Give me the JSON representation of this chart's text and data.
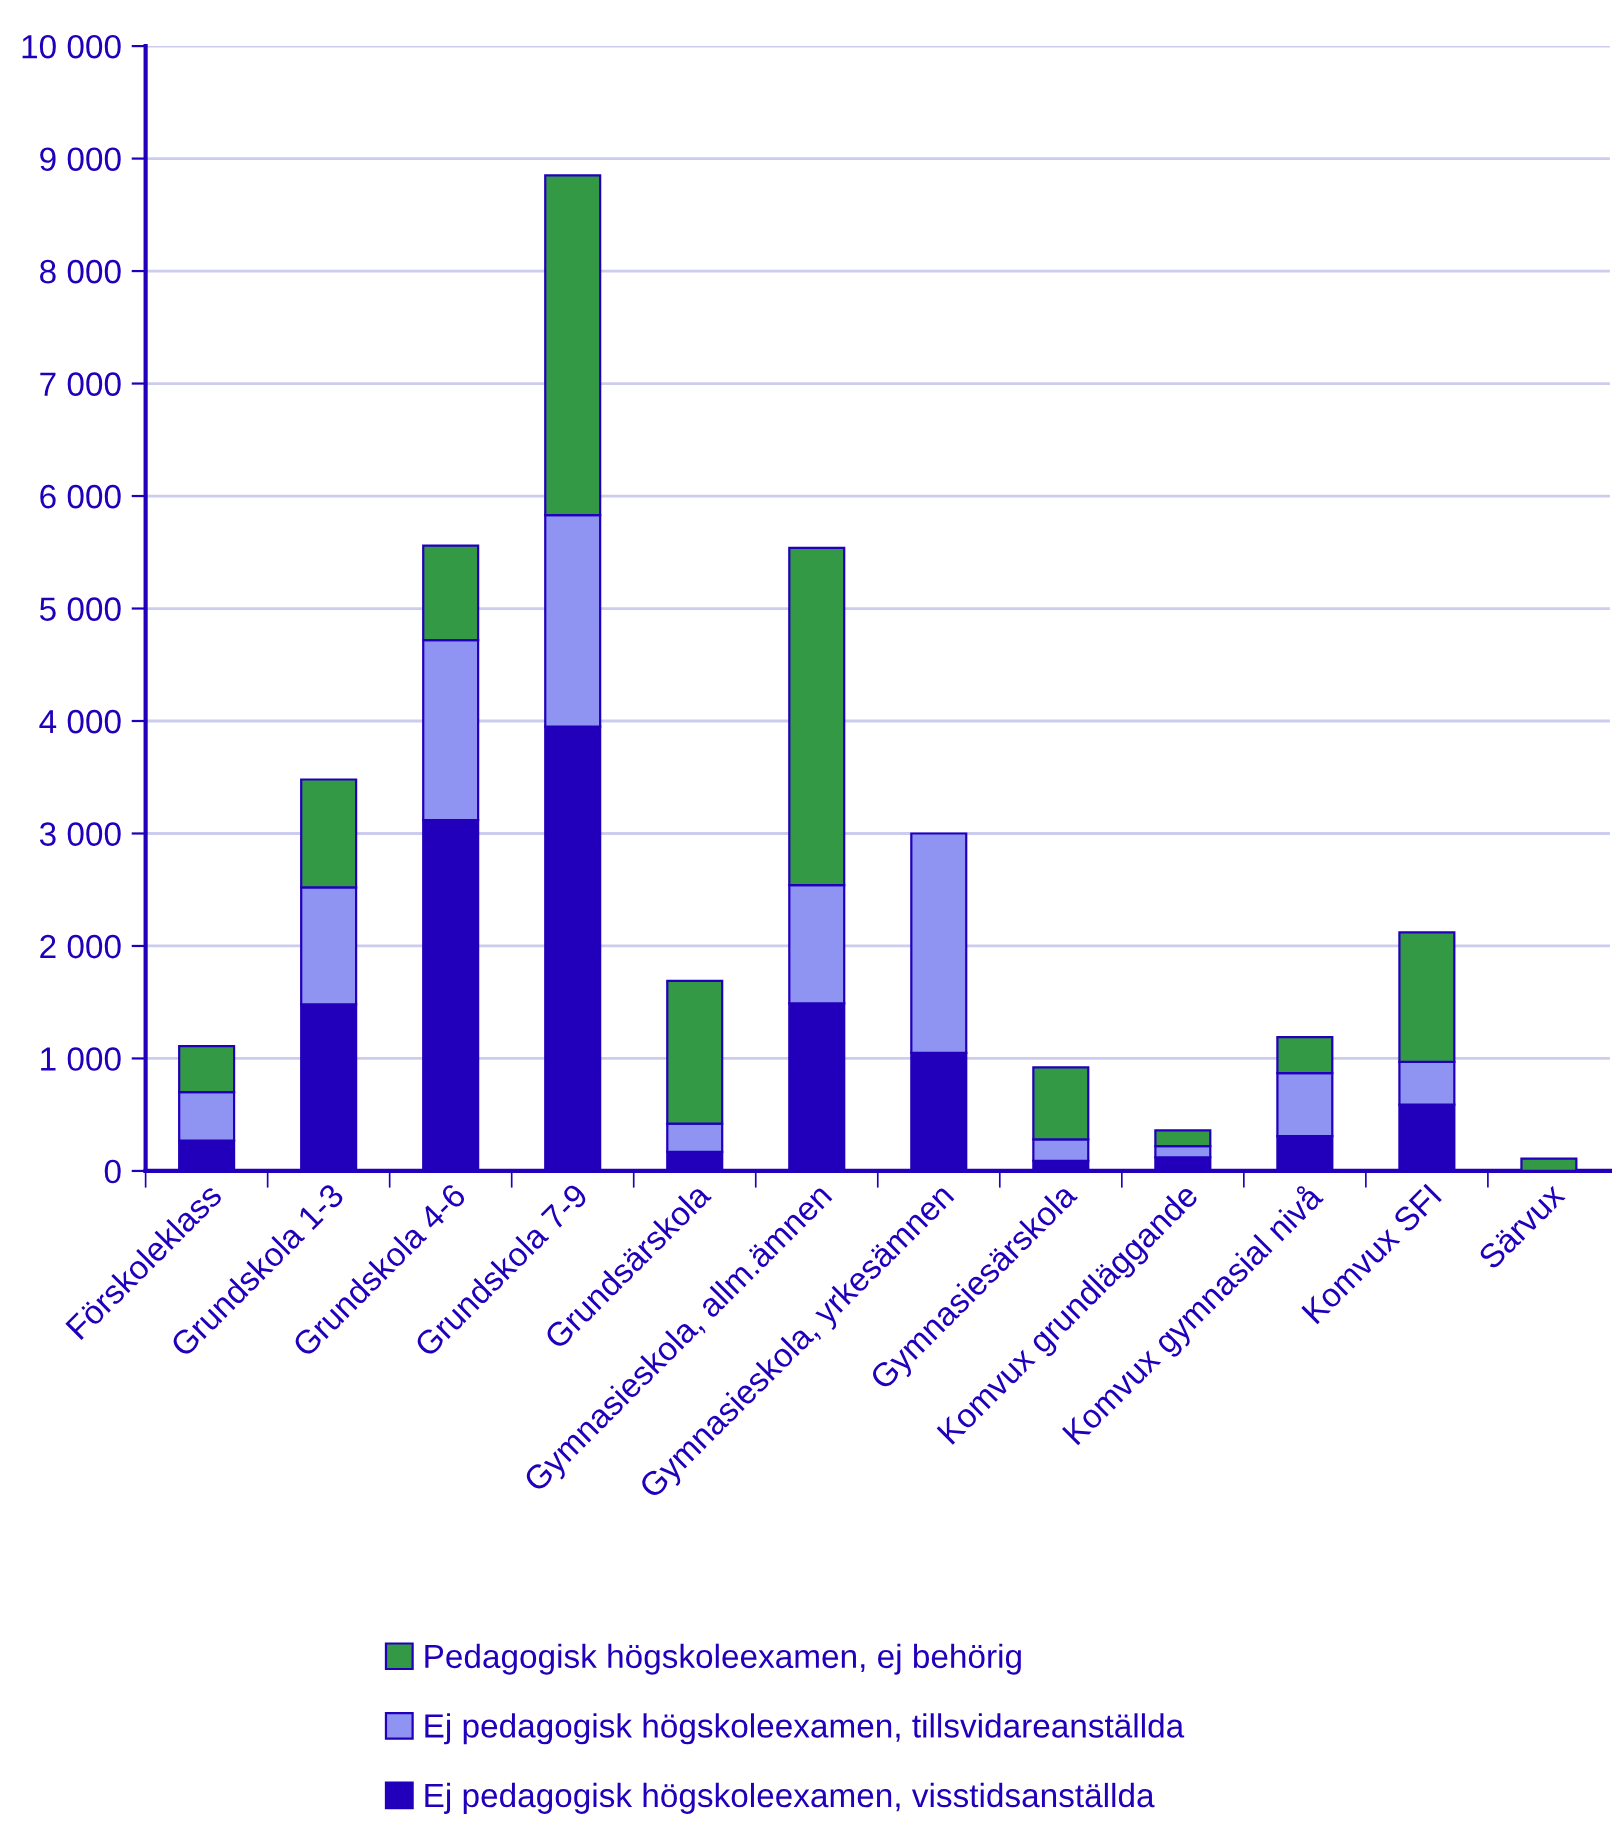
{
  "chart_data": {
    "type": "bar",
    "stacked": true,
    "categories": [
      "Förskoleklass",
      "Grundskola 1-3",
      "Grundskola 4-6",
      "Grundskola 7-9",
      "Grundsärskola",
      "Gymnasieskola, allm.ämnen",
      "Gymnasieskola, yrkesämnen",
      "Gymnasiesärskola",
      "Komvux grundläggande",
      "Komvux gymnasial nivå",
      "Komvux SFI",
      "Särvux"
    ],
    "series": [
      {
        "name": "Ej pedagogisk högskoleexamen, visstidsanställda",
        "color": "#2200bb",
        "values": [
          270,
          1480,
          3120,
          3950,
          170,
          1490,
          1050,
          90,
          120,
          310,
          590,
          null
        ]
      },
      {
        "name": "Ej pedagogisk högskoleexamen, tillsvidareanställda",
        "color": "#8f94f3",
        "values": [
          430,
          1040,
          1600,
          1880,
          250,
          1050,
          1950,
          190,
          100,
          560,
          380,
          null
        ]
      },
      {
        "name": "Pedagogisk högskoleexamen, ej behörig",
        "color": "#339944",
        "values": [
          410,
          960,
          840,
          3020,
          1270,
          3000,
          null,
          640,
          140,
          320,
          1150,
          110
        ]
      }
    ],
    "ylim": [
      0,
      10000
    ],
    "yticks": [
      {
        "value": 0,
        "label": "0"
      },
      {
        "value": 1000,
        "label": "1 000"
      },
      {
        "value": 2000,
        "label": "2 000"
      },
      {
        "value": 3000,
        "label": "3 000"
      },
      {
        "value": 4000,
        "label": "4 000"
      },
      {
        "value": 5000,
        "label": "5 000"
      },
      {
        "value": 6000,
        "label": "6 000"
      },
      {
        "value": 7000,
        "label": "7 000"
      },
      {
        "value": 8000,
        "label": "8 000"
      },
      {
        "value": 9000,
        "label": "9 000"
      },
      {
        "value": 10000,
        "label": "10 000"
      }
    ],
    "grid": "y",
    "legend": "bottom"
  }
}
